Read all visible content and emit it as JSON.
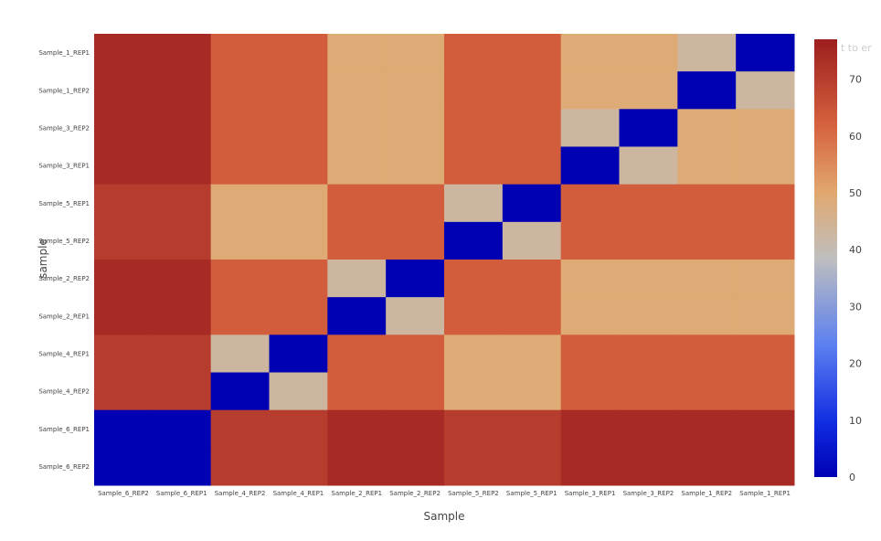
{
  "chart_data": {
    "type": "heatmap",
    "xlabel": "Sample",
    "ylabel": "sample",
    "x_categories": [
      "Sample_6_REP2",
      "Sample_6_REP1",
      "Sample_4_REP2",
      "Sample_4_REP1",
      "Sample_2_REP1",
      "Sample_2_REP2",
      "Sample_5_REP2",
      "Sample_5_REP1",
      "Sample_3_REP1",
      "Sample_3_REP2",
      "Sample_1_REP2",
      "Sample_1_REP1"
    ],
    "y_categories": [
      "Sample_1_REP1",
      "Sample_1_REP2",
      "Sample_3_REP2",
      "Sample_3_REP1",
      "Sample_5_REP1",
      "Sample_5_REP2",
      "Sample_2_REP2",
      "Sample_2_REP1",
      "Sample_4_REP1",
      "Sample_4_REP2",
      "Sample_6_REP1",
      "Sample_6_REP2"
    ],
    "values": [
      [
        74,
        74,
        63,
        63,
        49,
        49,
        63,
        63,
        49,
        49,
        43,
        0
      ],
      [
        74,
        74,
        63,
        63,
        49,
        49,
        63,
        63,
        49,
        49,
        0,
        43
      ],
      [
        74,
        74,
        63,
        63,
        49,
        49,
        63,
        63,
        43,
        0,
        49,
        49
      ],
      [
        74,
        74,
        63,
        63,
        49,
        49,
        63,
        63,
        0,
        43,
        49,
        49
      ],
      [
        70,
        70,
        49,
        49,
        63,
        63,
        43,
        0,
        63,
        63,
        63,
        63
      ],
      [
        70,
        70,
        49,
        49,
        63,
        63,
        0,
        43,
        63,
        63,
        63,
        63
      ],
      [
        74,
        74,
        63,
        63,
        43,
        0,
        63,
        63,
        49,
        49,
        49,
        49
      ],
      [
        74,
        74,
        63,
        63,
        0,
        43,
        63,
        63,
        49,
        49,
        49,
        49
      ],
      [
        70,
        70,
        43,
        0,
        63,
        63,
        49,
        49,
        63,
        63,
        63,
        63
      ],
      [
        70,
        70,
        0,
        43,
        63,
        63,
        49,
        49,
        63,
        63,
        63,
        63
      ],
      [
        0,
        0,
        70,
        70,
        74,
        74,
        70,
        70,
        74,
        74,
        74,
        74
      ],
      [
        0,
        0,
        70,
        70,
        74,
        74,
        70,
        70,
        74,
        74,
        74,
        74
      ]
    ],
    "colorbar": {
      "title": "t to er",
      "range": [
        0,
        77
      ],
      "ticks": [
        0,
        10,
        20,
        30,
        40,
        50,
        60,
        70
      ],
      "colorscale": [
        [
          0.0,
          "#0000b3"
        ],
        [
          0.12,
          "#0f2be0"
        ],
        [
          0.3,
          "#5b7ff0"
        ],
        [
          0.5,
          "#bfbfbf"
        ],
        [
          0.65,
          "#e1a86e"
        ],
        [
          0.8,
          "#d6633f"
        ],
        [
          1.0,
          "#9c1e1e"
        ]
      ]
    }
  }
}
